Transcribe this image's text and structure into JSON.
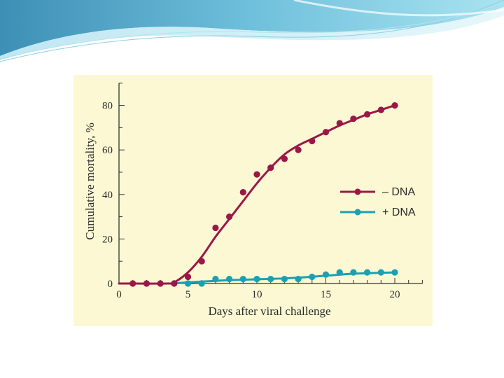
{
  "colors": {
    "minus_dna": "#9b1747",
    "plus_dna": "#1aa0b2",
    "panel_bg": "#fbf8d3",
    "axis": "#333333"
  },
  "chart_data": {
    "type": "line",
    "xlabel": "Days after viral challenge",
    "ylabel": "Cumulative mortality, %",
    "xlim": [
      0,
      22
    ],
    "ylim": [
      0,
      90
    ],
    "xticks": [
      0,
      5,
      10,
      15,
      20
    ],
    "yticks": [
      0,
      20,
      40,
      60,
      80
    ],
    "grid": false,
    "legend_position": "right-middle",
    "series": [
      {
        "name": "– DNA",
        "color": "#9b1747",
        "points": [
          [
            1,
            0
          ],
          [
            2,
            0
          ],
          [
            3,
            0
          ],
          [
            4,
            0
          ],
          [
            5,
            3
          ],
          [
            6,
            10
          ],
          [
            7,
            25
          ],
          [
            8,
            30
          ],
          [
            9,
            41
          ],
          [
            10,
            49
          ],
          [
            11,
            52
          ],
          [
            12,
            56
          ],
          [
            13,
            60
          ],
          [
            14,
            64
          ],
          [
            15,
            68
          ],
          [
            16,
            72
          ],
          [
            17,
            74
          ],
          [
            18,
            76
          ],
          [
            19,
            78
          ],
          [
            20,
            80
          ]
        ],
        "curve": [
          [
            0,
            0
          ],
          [
            3.5,
            0
          ],
          [
            4,
            0.5
          ],
          [
            5,
            5
          ],
          [
            6,
            12
          ],
          [
            7,
            21
          ],
          [
            8,
            29
          ],
          [
            9,
            37
          ],
          [
            10,
            45
          ],
          [
            11,
            52
          ],
          [
            12,
            58
          ],
          [
            13,
            62
          ],
          [
            14,
            65
          ],
          [
            15,
            68
          ],
          [
            16,
            71
          ],
          [
            17,
            73.5
          ],
          [
            18,
            76
          ],
          [
            19,
            78
          ],
          [
            20,
            80
          ]
        ]
      },
      {
        "name": "+ DNA",
        "color": "#1aa0b2",
        "points": [
          [
            5,
            0
          ],
          [
            6,
            0
          ],
          [
            7,
            2
          ],
          [
            8,
            2
          ],
          [
            9,
            2
          ],
          [
            10,
            2
          ],
          [
            11,
            2
          ],
          [
            12,
            2
          ],
          [
            13,
            2
          ],
          [
            14,
            3
          ],
          [
            15,
            4
          ],
          [
            16,
            5
          ],
          [
            17,
            5
          ],
          [
            18,
            5
          ],
          [
            19,
            5
          ],
          [
            20,
            5
          ]
        ],
        "curve": [
          [
            4,
            0
          ],
          [
            5,
            0.5
          ],
          [
            8,
            1.5
          ],
          [
            12,
            2.3
          ],
          [
            15,
            3.5
          ],
          [
            17,
            4.4
          ],
          [
            20,
            5
          ]
        ]
      }
    ]
  }
}
